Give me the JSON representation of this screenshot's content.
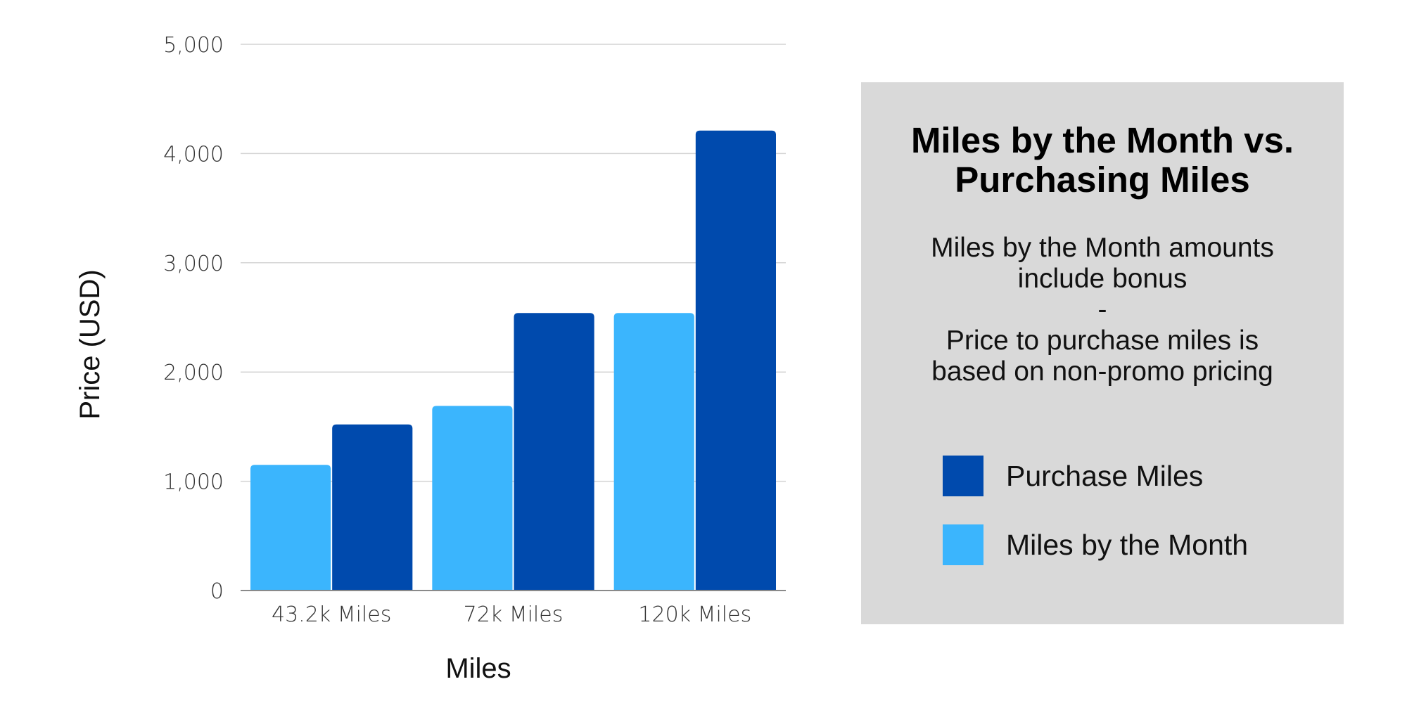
{
  "chart_data": {
    "type": "bar",
    "categories": [
      "43.2k Miles",
      "72k Miles",
      "120k Miles"
    ],
    "series": [
      {
        "name": "Miles by the Month",
        "color": "#3bb5fd",
        "values": [
          1150,
          1690,
          2540
        ]
      },
      {
        "name": "Purchase Miles",
        "color": "#004aad",
        "values": [
          1520,
          2540,
          4210
        ]
      }
    ],
    "xlabel": "Miles",
    "ylabel": "Price (USD)",
    "ylim": [
      0,
      5000
    ],
    "yticks": [
      0,
      1000,
      2000,
      3000,
      4000,
      5000
    ],
    "ytick_labels": [
      "0",
      "1,000",
      "2,000",
      "3,000",
      "4,000",
      "5,000"
    ],
    "grid": true,
    "legend_position": "right"
  },
  "panel": {
    "title_line1": "Miles by the Month vs.",
    "title_line2": "Purchasing Miles",
    "note_line1": "Miles by the Month amounts",
    "note_line2": "include bonus",
    "note_line3": "-",
    "note_line4": "Price to purchase miles is",
    "note_line5": "based on non-promo pricing"
  },
  "legend": {
    "items": [
      {
        "label": "Purchase Miles",
        "color": "#004aad"
      },
      {
        "label": "Miles by the Month",
        "color": "#3bb5fd"
      }
    ]
  }
}
